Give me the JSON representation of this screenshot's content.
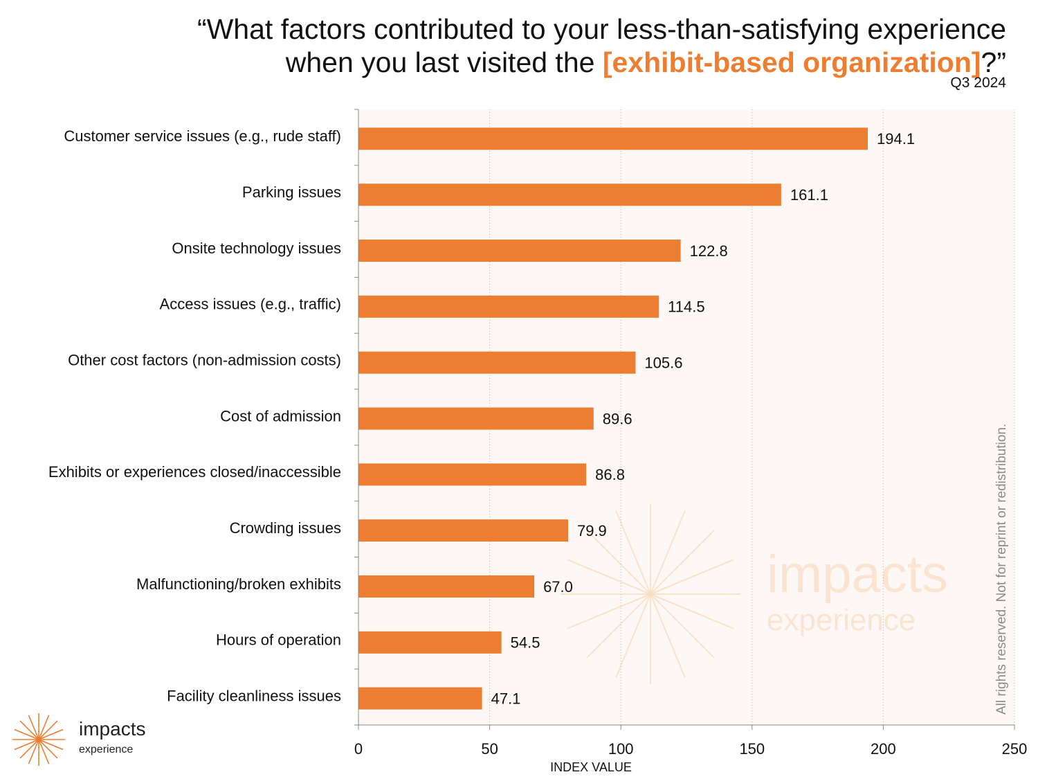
{
  "title": {
    "line1": "“What factors contributed to your less-than-satisfying experience",
    "line2_prefix": "when you last visited the ",
    "line2_highlight": "[exhibit-based organization]",
    "line2_suffix": "?”",
    "period": "Q3 2024"
  },
  "colors": {
    "bar": "#ED7D31",
    "highlight": "#ED7D31",
    "plot_background": "#FDF8F5",
    "gridline": "#BFA9A0"
  },
  "watermark": {
    "word": "impacts",
    "sub": "experience",
    "icon": "sunburst-icon"
  },
  "rights_notice": "All rights reserved. Not for reprint or redistribution.",
  "logo": {
    "word": "impacts",
    "sub": "experience",
    "icon": "sunburst-icon"
  },
  "chart_data": {
    "type": "bar",
    "orientation": "horizontal",
    "categories": [
      "Customer service issues (e.g., rude staff)",
      "Parking issues",
      "Onsite technology issues",
      "Access issues (e.g., traffic)",
      "Other cost factors (non-admission costs)",
      "Cost of admission",
      "Exhibits or experiences closed/inaccessible",
      "Crowding issues",
      "Malfunctioning/broken exhibits",
      "Hours of operation",
      "Facility cleanliness issues"
    ],
    "values": [
      194.1,
      161.1,
      122.8,
      114.5,
      105.6,
      89.6,
      86.8,
      79.9,
      67.0,
      54.5,
      47.1
    ],
    "value_labels": [
      "194.1",
      "161.1",
      "122.8",
      "114.5",
      "105.6",
      "89.6",
      "86.8",
      "79.9",
      "67.0",
      "54.5",
      "47.1"
    ],
    "xlabel": "INDEX VALUE",
    "xlim": [
      0,
      250
    ],
    "xticks": [
      0,
      50,
      100,
      150,
      200,
      250
    ],
    "grid": "vertical dotted"
  }
}
